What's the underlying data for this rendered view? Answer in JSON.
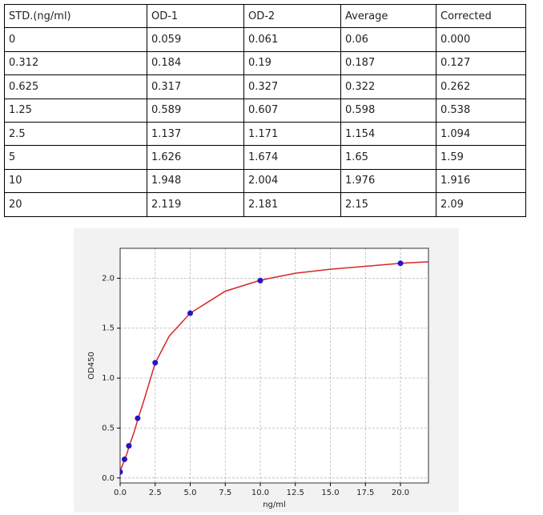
{
  "table": {
    "header": [
      "STD.(ng/ml)",
      "OD-1",
      "OD-2",
      "Average",
      "Corrected"
    ],
    "rows": [
      [
        "0",
        "0.059",
        "0.061",
        "0.06",
        "0.000"
      ],
      [
        "0.312",
        "0.184",
        "0.19",
        "0.187",
        "0.127"
      ],
      [
        "0.625",
        "0.317",
        "0.327",
        "0.322",
        "0.262"
      ],
      [
        "1.25",
        "0.589",
        "0.607",
        "0.598",
        "0.538"
      ],
      [
        "2.5",
        "1.137",
        "1.171",
        "1.154",
        "1.094"
      ],
      [
        "5",
        "1.626",
        "1.674",
        "1.65",
        "1.59"
      ],
      [
        "10",
        "1.948",
        "2.004",
        "1.976",
        "1.916"
      ],
      [
        "20",
        "2.119",
        "2.181",
        "2.15",
        "2.09"
      ]
    ]
  },
  "chart_data": {
    "type": "scatter",
    "x_label": "ng/ml",
    "y_label": "OD450",
    "x": [
      0,
      0.312,
      0.625,
      1.25,
      2.5,
      5,
      10,
      20
    ],
    "values": [
      0.06,
      0.187,
      0.322,
      0.598,
      1.154,
      1.65,
      1.976,
      2.15
    ],
    "color": "#2414c8",
    "fit": {
      "color": "#d62728",
      "x": [
        0,
        0.312,
        0.5,
        0.625,
        1,
        1.25,
        1.75,
        2.5,
        3.5,
        5,
        7.5,
        10,
        12.5,
        15,
        17.5,
        20,
        22
      ],
      "values": [
        0.07,
        0.18,
        0.25,
        0.31,
        0.46,
        0.58,
        0.8,
        1.15,
        1.42,
        1.65,
        1.87,
        1.98,
        2.05,
        2.09,
        2.12,
        2.15,
        2.165
      ]
    },
    "xlim": [
      0,
      22
    ],
    "ylim": [
      -0.05,
      2.3
    ],
    "xticks": [
      {
        "value": 0,
        "label": "0.0"
      },
      2.5,
      {
        "value": 5,
        "label": "5.0"
      },
      7.5,
      {
        "value": 10,
        "label": "10.0"
      },
      12.5,
      {
        "value": 15,
        "label": "15.0"
      },
      17.5,
      {
        "value": 20,
        "label": "20.0"
      }
    ],
    "yticks": [
      {
        "value": 0,
        "label": "0.0"
      },
      0.5,
      {
        "value": 1,
        "label": "1.0"
      },
      1.5,
      {
        "value": 2,
        "label": "2.0"
      }
    ],
    "grid": true
  }
}
